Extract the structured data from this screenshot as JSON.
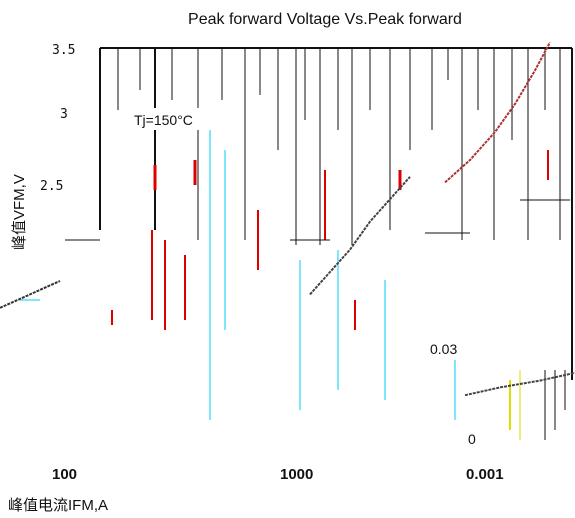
{
  "chart_data": {
    "type": "line",
    "title": "Peak forward Voltage Vs.Peak forward",
    "xlabel": "峰值电流IFM,A",
    "ylabel": "峰值VFM,V",
    "y_ticks": [
      "3.5",
      "3",
      "2.5"
    ],
    "x_ticks": [
      "100",
      "1000",
      "0.001"
    ],
    "annotations": [
      "Tj=150°C",
      "0.03",
      "0"
    ],
    "ylim": [
      0,
      3.5
    ],
    "grid": true,
    "series": [
      {
        "x": [
          0,
          10,
          20,
          30,
          40,
          50,
          60
        ],
        "y": [
          1.18,
          1.22,
          1.26,
          1.3,
          1.34,
          1.38,
          1.42
        ]
      },
      {
        "x": [
          310,
          330,
          350,
          370,
          390,
          410
        ],
        "y": [
          1.3,
          1.5,
          1.7,
          1.95,
          2.15,
          2.35
        ]
      },
      {
        "x": [
          445,
          470,
          495,
          515,
          535,
          550
        ],
        "y": [
          2.3,
          2.5,
          2.75,
          3.0,
          3.3,
          3.55
        ]
      },
      {
        "x": [
          465,
          500,
          540,
          575
        ],
        "y": [
          0.4,
          0.47,
          0.53,
          0.6
        ]
      }
    ]
  }
}
